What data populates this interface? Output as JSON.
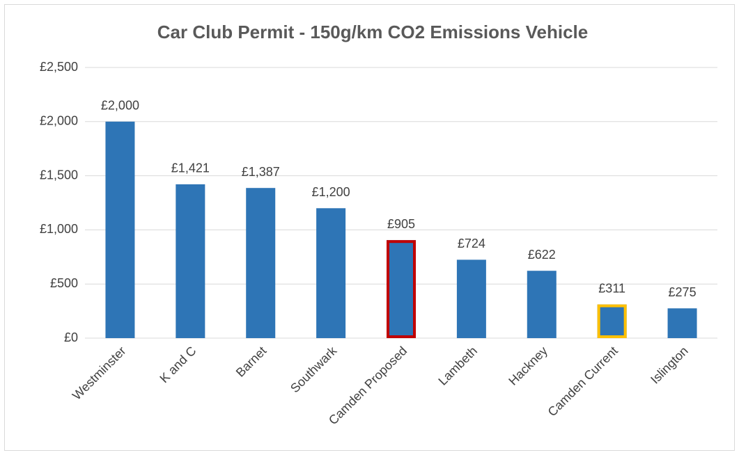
{
  "chart_data": {
    "type": "bar",
    "title": "Car Club Permit - 150g/km CO2 Emissions Vehicle",
    "categories": [
      "Westminster",
      "K and C",
      "Barnet",
      "Southwark",
      "Camden Proposed",
      "Lambeth",
      "Hackney",
      "Camden Current",
      "Islington"
    ],
    "values": [
      2000,
      1421,
      1387,
      1200,
      905,
      724,
      622,
      311,
      275
    ],
    "value_labels": [
      "£2,000",
      "£1,421",
      "£1,387",
      "£1,200",
      "£905",
      "£724",
      "£622",
      "£311",
      "£275"
    ],
    "color": "#2e75b6",
    "outline_colors": [
      null,
      null,
      null,
      null,
      "#c00000",
      null,
      null,
      "#ffc000",
      null
    ],
    "ylim": [
      0,
      2500
    ],
    "yticks": [
      {
        "value": 0,
        "label": "£0"
      },
      {
        "value": 500,
        "label": "£500"
      },
      {
        "value": 1000,
        "label": "£1,000"
      },
      {
        "value": 1500,
        "label": "£1,500"
      },
      {
        "value": 2000,
        "label": "£2,000"
      },
      {
        "value": 2500,
        "label": "£2,500"
      }
    ],
    "grid": true
  }
}
